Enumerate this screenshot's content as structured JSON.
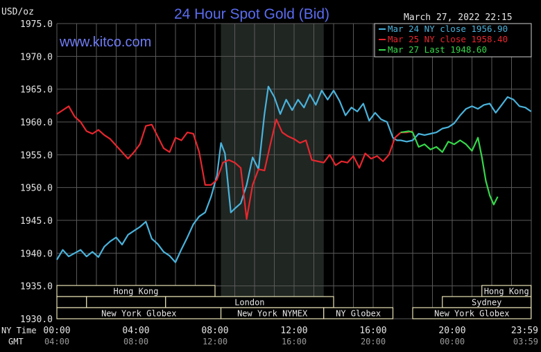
{
  "header": {
    "unit_label": "USD/oz",
    "title": "24 Hour Spot Gold (Bid)",
    "timestamp": "March 27, 2022 22:15",
    "watermark": "www.kitco.com"
  },
  "colors": {
    "background": "#000000",
    "grid": "#5a5a5a",
    "title": "#5b6cf0",
    "watermark": "#6f7cf5",
    "text": "#e6e6e6",
    "session_band": "#202622",
    "session_bar": "#e8e2b4",
    "series_mar24": "#4ab3dc",
    "series_mar25": "#e8262e",
    "series_mar27": "#35d84a"
  },
  "axis_labels": {
    "ny_time": "NY Time",
    "gmt": "GMT"
  },
  "chart_data": {
    "type": "line",
    "title": "24 Hour Spot Gold (Bid)",
    "ylabel": "USD/oz",
    "ylim": [
      1930,
      1975
    ],
    "y_ticks": [
      1975.0,
      1970.0,
      1965.0,
      1960.0,
      1955.0,
      1950.0,
      1945.0,
      1940.0,
      1935.0,
      1930.0
    ],
    "y_tick_labels": [
      "1975.0",
      "1970.0",
      "1965.0",
      "1960.0",
      "1955.0",
      "1950.0",
      "1945.0",
      "1940.0",
      "1935.0",
      "1930.0"
    ],
    "xlim": [
      0,
      24
    ],
    "x_ticks": [
      0,
      4,
      8,
      12,
      16,
      20,
      24
    ],
    "x_tick_labels_ny": [
      "00:00",
      "04:00",
      "08:00",
      "12:00",
      "16:00",
      "20:00",
      "23:59"
    ],
    "x_tick_labels_gmt": [
      "04:00",
      "08:00",
      "12:00",
      "16:00",
      "20:00",
      "00:00",
      "03:59"
    ],
    "grid": true,
    "legend_position": "top-right",
    "highlight_band": [
      8.3,
      13.5
    ],
    "legend": [
      {
        "label": "Mar 24 NY close 1956.90",
        "color": "#4ab3dc"
      },
      {
        "label": "Mar 25 NY close 1958.40",
        "color": "#e8262e"
      },
      {
        "label": "Mar 27 Last 1948.60",
        "color": "#35d84a"
      }
    ],
    "series": [
      {
        "name": "Mar 24 NY close 1956.90",
        "color": "#4ab3dc",
        "x": [
          0,
          0.3,
          0.6,
          0.9,
          1.2,
          1.5,
          1.8,
          2.1,
          2.4,
          2.7,
          3.0,
          3.3,
          3.6,
          3.9,
          4.2,
          4.5,
          4.8,
          5.1,
          5.4,
          5.7,
          6.0,
          6.3,
          6.6,
          6.9,
          7.2,
          7.5,
          7.8,
          8.1,
          8.3,
          8.5,
          8.8,
          9.0,
          9.3,
          9.6,
          9.9,
          10.2,
          10.5,
          10.7,
          11.0,
          11.3,
          11.6,
          11.9,
          12.2,
          12.5,
          12.8,
          13.1,
          13.4,
          13.7,
          14.0,
          14.3,
          14.6,
          14.9,
          15.2,
          15.5,
          15.8,
          16.1,
          16.4,
          16.7,
          17.0,
          17.2,
          17.4,
          17.7,
          18.0,
          18.3,
          18.6,
          18.9,
          19.2,
          19.5,
          19.8,
          20.1,
          20.4,
          20.7,
          21.0,
          21.3,
          21.6,
          21.9,
          22.2,
          22.5,
          22.8,
          23.1,
          23.4,
          23.7,
          23.99
        ],
        "y": [
          1939.0,
          1940.5,
          1939.5,
          1940.0,
          1940.5,
          1939.5,
          1940.2,
          1939.4,
          1941.0,
          1941.8,
          1942.4,
          1941.3,
          1942.8,
          1943.4,
          1944.0,
          1944.8,
          1942.2,
          1941.4,
          1940.2,
          1939.6,
          1938.6,
          1940.6,
          1942.4,
          1944.4,
          1945.6,
          1946.2,
          1948.6,
          1951.8,
          1956.8,
          1955.2,
          1946.2,
          1946.8,
          1947.6,
          1950.4,
          1954.6,
          1952.8,
          1961.2,
          1965.4,
          1963.8,
          1961.2,
          1963.4,
          1961.8,
          1963.4,
          1962.2,
          1964.2,
          1962.6,
          1964.8,
          1963.4,
          1964.8,
          1963.2,
          1961.0,
          1962.2,
          1961.6,
          1962.8,
          1960.2,
          1961.4,
          1960.4,
          1960.0,
          1957.6,
          1957.2,
          1957.2,
          1957.0,
          1957.2,
          1958.2,
          1958.0,
          1958.2,
          1958.4,
          1959.0,
          1959.2,
          1959.8,
          1961.0,
          1962.0,
          1962.4,
          1962.0,
          1962.6,
          1962.8,
          1961.4,
          1962.6,
          1963.8,
          1963.4,
          1962.4,
          1962.2,
          1961.6
        ]
      },
      {
        "name": "Mar 25 NY close 1958.40",
        "color": "#e8262e",
        "x": [
          0,
          0.3,
          0.6,
          0.9,
          1.2,
          1.5,
          1.8,
          2.1,
          2.4,
          2.7,
          3.0,
          3.3,
          3.6,
          3.9,
          4.2,
          4.5,
          4.8,
          5.1,
          5.4,
          5.7,
          6.0,
          6.3,
          6.6,
          6.9,
          7.2,
          7.5,
          7.8,
          8.1,
          8.4,
          8.7,
          9.0,
          9.3,
          9.6,
          9.9,
          10.2,
          10.5,
          10.8,
          11.1,
          11.4,
          11.7,
          12.0,
          12.3,
          12.6,
          12.9,
          13.2,
          13.5,
          13.8,
          14.1,
          14.4,
          14.7,
          15.0,
          15.3,
          15.6,
          15.9,
          16.2,
          16.5,
          16.8,
          17.1,
          17.4,
          17.7,
          18.0
        ],
        "y": [
          1961.2,
          1961.8,
          1962.4,
          1960.8,
          1960.0,
          1958.6,
          1958.2,
          1958.8,
          1958.0,
          1957.4,
          1956.4,
          1955.4,
          1954.4,
          1955.4,
          1956.6,
          1959.4,
          1959.6,
          1957.8,
          1956.0,
          1955.4,
          1957.6,
          1957.2,
          1958.4,
          1958.2,
          1955.4,
          1950.4,
          1950.4,
          1951.2,
          1953.8,
          1954.2,
          1953.8,
          1953.0,
          1945.2,
          1950.4,
          1952.8,
          1952.6,
          1956.6,
          1960.4,
          1958.4,
          1957.8,
          1957.4,
          1956.8,
          1957.2,
          1954.2,
          1954.0,
          1953.8,
          1955.0,
          1953.4,
          1954.0,
          1953.8,
          1954.8,
          1953.0,
          1955.2,
          1954.4,
          1954.8,
          1954.0,
          1955.0,
          1957.6,
          1958.4,
          1958.4,
          1958.6
        ]
      },
      {
        "name": "Mar 27 Last 1948.60",
        "color": "#35d84a",
        "x": [
          17.4,
          17.8,
          18.0,
          18.3,
          18.6,
          18.9,
          19.2,
          19.5,
          19.8,
          20.1,
          20.4,
          20.7,
          21.0,
          21.3,
          21.5,
          21.7,
          21.9,
          22.1,
          22.3
        ],
        "y": [
          1958.4,
          1958.6,
          1958.4,
          1956.2,
          1956.6,
          1955.8,
          1956.2,
          1955.4,
          1957.0,
          1956.6,
          1957.2,
          1956.6,
          1955.6,
          1957.6,
          1954.6,
          1951.0,
          1948.8,
          1947.4,
          1948.6
        ]
      }
    ],
    "sessions": [
      {
        "label": "Hong Kong",
        "start": 0,
        "end": 8,
        "row": 0
      },
      {
        "label": "Hong Kong",
        "start": 21.5,
        "end": 23.99,
        "row": 0
      },
      {
        "label": "",
        "start": 0,
        "end": 1.5,
        "row": 1
      },
      {
        "label": "",
        "start": 1.5,
        "end": 5.5,
        "row": 1
      },
      {
        "label": "London",
        "start": 5.5,
        "end": 14,
        "row": 1
      },
      {
        "label": "Sydney",
        "start": 19.5,
        "end": 23.99,
        "row": 1
      },
      {
        "label": "New York Globex",
        "start": 0,
        "end": 8.3,
        "row": 2
      },
      {
        "label": "New York NYMEX",
        "start": 8.3,
        "end": 13.5,
        "row": 2
      },
      {
        "label": "NY Globex",
        "start": 13.5,
        "end": 17,
        "row": 2
      },
      {
        "label": "New York Globex",
        "start": 18,
        "end": 23.99,
        "row": 2
      }
    ]
  }
}
